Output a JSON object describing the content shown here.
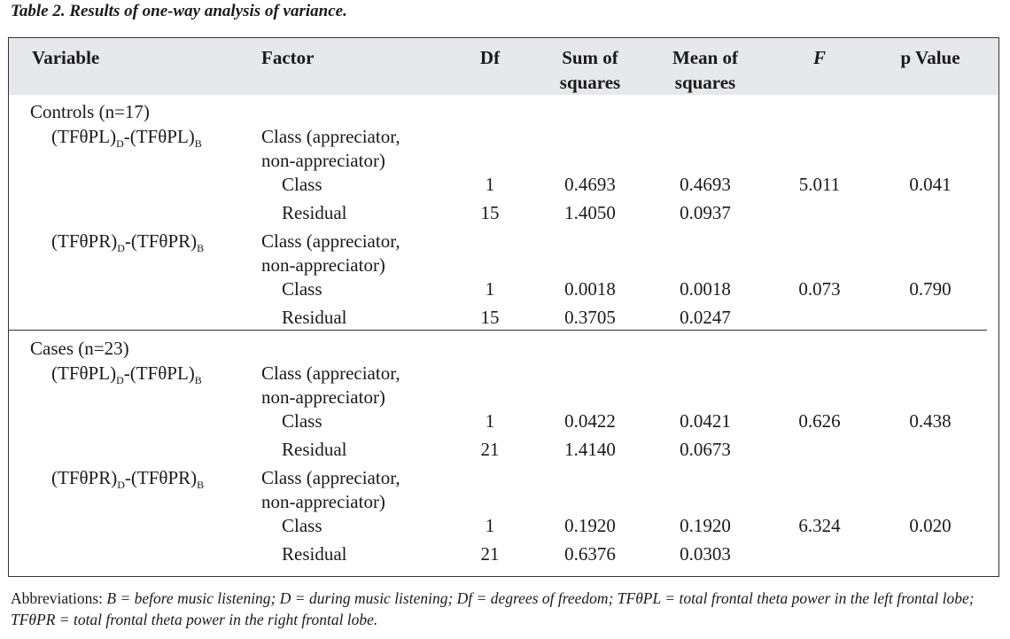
{
  "title": "Table 2. Results of one-way analysis of variance.",
  "headers": {
    "variable": "Variable",
    "factor": "Factor",
    "df": "Df",
    "sum_of_squares_l1": "Sum of",
    "sum_of_squares_l2": "squares",
    "mean_of_squares_l1": "Mean of",
    "mean_of_squares_l2": "squares",
    "f": "F",
    "p_value": "p Value"
  },
  "groups": [
    {
      "label": "Controls (n=17)",
      "variables": [
        {
          "name_pre": "(TFθPL)",
          "sub1": "D",
          "name_mid": "-(TFθPL)",
          "sub2": "B",
          "factor_l1": "Class (appreciator,",
          "factor_l2": "non-appreciator)",
          "rows": [
            {
              "factor": "Class",
              "df": "1",
              "ss": "0.4693",
              "ms": "0.4693",
              "f": "5.011",
              "p": "0.041"
            },
            {
              "factor": "Residual",
              "df": "15",
              "ss": "1.4050",
              "ms": "0.0937",
              "f": "",
              "p": ""
            }
          ]
        },
        {
          "name_pre": "(TFθPR)",
          "sub1": "D",
          "name_mid": "-(TFθPR)",
          "sub2": "B",
          "factor_l1": "Class (appreciator,",
          "factor_l2": "non-appreciator)",
          "rows": [
            {
              "factor": "Class",
              "df": "1",
              "ss": "0.0018",
              "ms": "0.0018",
              "f": "0.073",
              "p": "0.790"
            },
            {
              "factor": "Residual",
              "df": "15",
              "ss": "0.3705",
              "ms": "0.0247",
              "f": "",
              "p": ""
            }
          ]
        }
      ]
    },
    {
      "label": "Cases (n=23)",
      "variables": [
        {
          "name_pre": "(TFθPL)",
          "sub1": "D",
          "name_mid": "-(TFθPL)",
          "sub2": "B",
          "factor_l1": "Class (appreciator,",
          "factor_l2": "non-appreciator)",
          "rows": [
            {
              "factor": "Class",
              "df": "1",
              "ss": "0.0422",
              "ms": "0.0421",
              "f": "0.626",
              "p": "0.438"
            },
            {
              "factor": "Residual",
              "df": "21",
              "ss": "1.4140",
              "ms": "0.0673",
              "f": "",
              "p": ""
            }
          ]
        },
        {
          "name_pre": "(TFθPR)",
          "sub1": "D",
          "name_mid": "-(TFθPR)",
          "sub2": "B",
          "factor_l1": "Class (appreciator,",
          "factor_l2": "non-appreciator)",
          "rows": [
            {
              "factor": "Class",
              "df": "1",
              "ss": "0.1920",
              "ms": "0.1920",
              "f": "6.324",
              "p": "0.020"
            },
            {
              "factor": "Residual",
              "df": "21",
              "ss": "0.6376",
              "ms": "0.0303",
              "f": "",
              "p": ""
            }
          ]
        }
      ]
    }
  ],
  "footnote": {
    "prefix": "Abbreviations: ",
    "text": "B = before music listening; D = during music listening; Df = degrees of freedom; TFθPL = total frontal theta power in the left frontal lobe; TFθPR = total frontal theta power in the right frontal lobe."
  }
}
